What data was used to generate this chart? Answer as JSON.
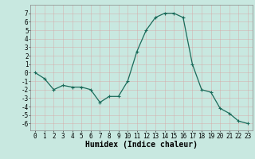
{
  "x": [
    0,
    1,
    2,
    3,
    4,
    5,
    6,
    7,
    8,
    9,
    10,
    11,
    12,
    13,
    14,
    15,
    16,
    17,
    18,
    19,
    20,
    21,
    22,
    23
  ],
  "y": [
    0,
    -0.7,
    -2,
    -1.5,
    -1.7,
    -1.7,
    -2.0,
    -3.5,
    -2.8,
    -2.8,
    -1.0,
    2.5,
    5.0,
    6.5,
    7.0,
    7.0,
    6.5,
    1.0,
    -2.0,
    -2.3,
    -4.2,
    -4.8,
    -5.7,
    -6.0
  ],
  "xlabel": "Humidex (Indice chaleur)",
  "ylim": [
    -6.8,
    8.0
  ],
  "xlim": [
    -0.5,
    23.5
  ],
  "yticks": [
    -6,
    -5,
    -4,
    -3,
    -2,
    -1,
    0,
    1,
    2,
    3,
    4,
    5,
    6,
    7
  ],
  "xticks": [
    0,
    1,
    2,
    3,
    4,
    5,
    6,
    7,
    8,
    9,
    10,
    11,
    12,
    13,
    14,
    15,
    16,
    17,
    18,
    19,
    20,
    21,
    22,
    23
  ],
  "line_color": "#1a6b5a",
  "marker": "+",
  "bg_color": "#c8e8e0",
  "grid_color": "#e8f8f4",
  "xlabel_fontsize": 7,
  "tick_fontsize": 5.5
}
